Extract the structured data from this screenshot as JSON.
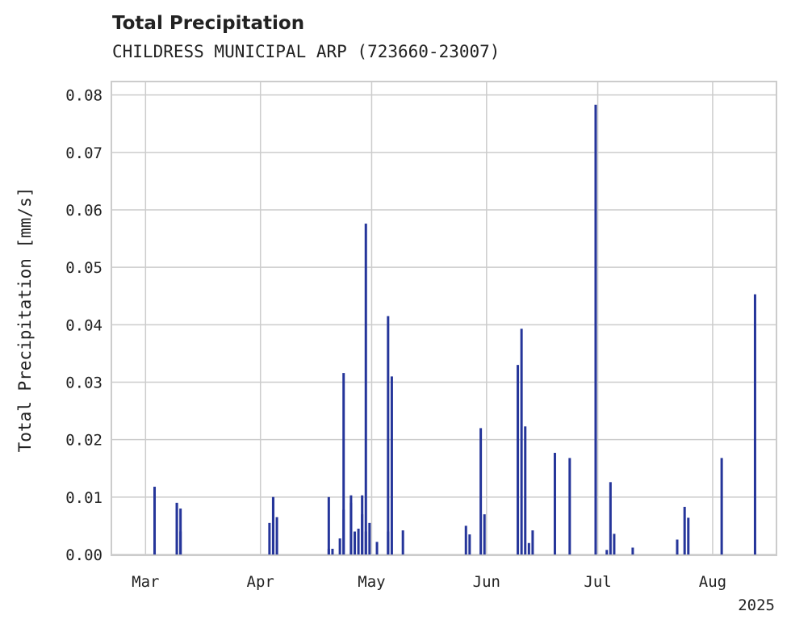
{
  "chart_data": {
    "type": "bar",
    "title": "Total Precipitation",
    "subtitle": "CHILDRESS MUNICIPAL ARP (723660-23007)",
    "ylabel": "Total Precipitation [mm/s]",
    "xlabel": "",
    "year_label": "2025",
    "ylim": [
      0,
      0.0822
    ],
    "xlim": [
      "2025-02-20",
      "2025-08-18"
    ],
    "yticks": [
      "0.00",
      "0.01",
      "0.02",
      "0.03",
      "0.04",
      "0.05",
      "0.06",
      "0.07",
      "0.08"
    ],
    "xticks": [
      {
        "date": "2025-03-01",
        "label": "Mar"
      },
      {
        "date": "2025-04-01",
        "label": "Apr"
      },
      {
        "date": "2025-05-01",
        "label": "May"
      },
      {
        "date": "2025-06-01",
        "label": "Jun"
      },
      {
        "date": "2025-07-01",
        "label": "Jul"
      },
      {
        "date": "2025-08-01",
        "label": "Aug"
      }
    ],
    "grid": true,
    "bar_color": "#25359a",
    "series": [
      {
        "x": [
          "2025-03-03",
          "2025-03-03",
          "2025-03-09",
          "2025-03-09",
          "2025-03-10",
          "2025-03-10",
          "2025-04-03",
          "2025-04-04",
          "2025-04-04",
          "2025-04-05",
          "2025-04-05",
          "2025-04-19",
          "2025-04-19",
          "2025-04-20",
          "2025-04-22",
          "2025-04-23",
          "2025-04-23",
          "2025-04-25",
          "2025-04-25",
          "2025-04-26",
          "2025-04-27",
          "2025-04-28",
          "2025-04-28",
          "2025-04-29",
          "2025-04-29",
          "2025-04-30",
          "2025-05-02",
          "2025-05-05",
          "2025-05-05",
          "2025-05-06",
          "2025-05-09",
          "2025-05-26",
          "2025-05-27",
          "2025-05-30",
          "2025-05-31",
          "2025-06-09",
          "2025-06-10",
          "2025-06-11",
          "2025-06-12",
          "2025-06-13",
          "2025-06-19",
          "2025-06-23",
          "2025-06-30",
          "2025-07-03",
          "2025-07-04",
          "2025-07-05",
          "2025-07-10",
          "2025-07-22",
          "2025-07-24",
          "2025-07-25",
          "2025-08-03",
          "2025-08-12"
        ],
        "values": [
          0.002,
          0.0118,
          0.009,
          0.009,
          0.008,
          0.004,
          0.0055,
          0.01,
          0.01,
          0.0065,
          0.0025,
          0.001,
          0.01,
          0.001,
          0.0028,
          0.0316,
          0.0078,
          0.0103,
          0.009,
          0.004,
          0.0045,
          0.007,
          0.0103,
          0.0576,
          0.004,
          0.0055,
          0.0022,
          0.004,
          0.0415,
          0.031,
          0.0042,
          0.005,
          0.0035,
          0.022,
          0.007,
          0.033,
          0.0393,
          0.0223,
          0.002,
          0.0042,
          0.0177,
          0.0168,
          0.0783,
          0.0008,
          0.0126,
          0.0036,
          0.0012,
          0.0026,
          0.0083,
          0.0064,
          0.0168,
          0.0453
        ]
      }
    ]
  }
}
